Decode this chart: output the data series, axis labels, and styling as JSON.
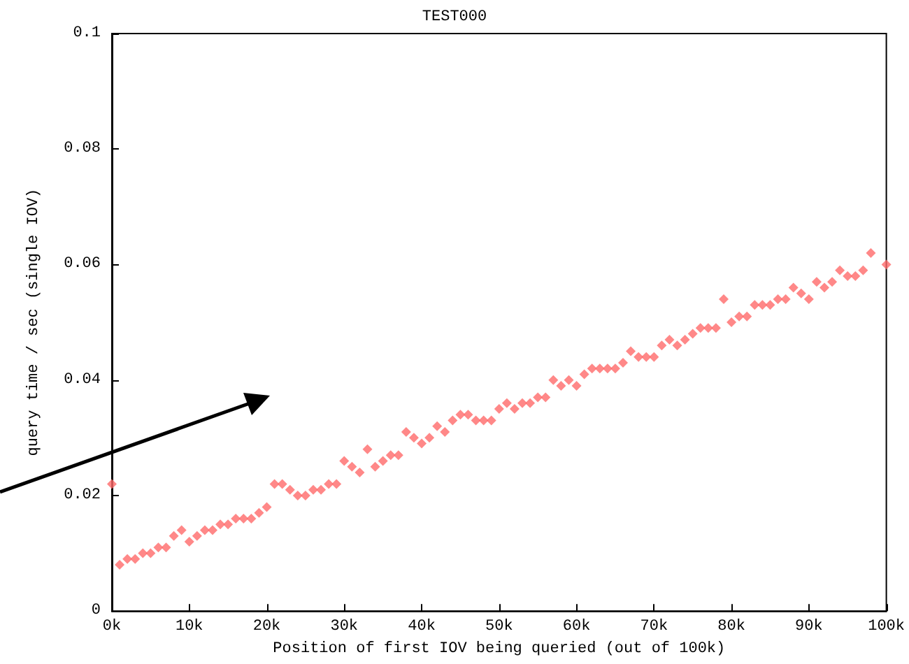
{
  "chart_data": {
    "type": "scatter",
    "title": "TEST000",
    "xlabel": "Position of first IOV being queried (out of 100k)",
    "ylabel": "query time / sec (single IOV)",
    "x": [
      0,
      1000,
      2000,
      3000,
      4000,
      5000,
      6000,
      7000,
      8000,
      9000,
      10000,
      11000,
      12000,
      13000,
      14000,
      15000,
      16000,
      17000,
      18000,
      19000,
      20000,
      21000,
      22000,
      23000,
      24000,
      25000,
      26000,
      27000,
      28000,
      29000,
      30000,
      31000,
      32000,
      33000,
      34000,
      35000,
      36000,
      37000,
      38000,
      39000,
      40000,
      41000,
      42000,
      43000,
      44000,
      45000,
      46000,
      47000,
      48000,
      49000,
      50000,
      51000,
      52000,
      53000,
      54000,
      55000,
      56000,
      57000,
      58000,
      59000,
      60000,
      61000,
      62000,
      63000,
      64000,
      65000,
      66000,
      67000,
      68000,
      69000,
      70000,
      71000,
      72000,
      73000,
      74000,
      75000,
      76000,
      77000,
      78000,
      79000,
      80000,
      81000,
      82000,
      83000,
      84000,
      85000,
      86000,
      87000,
      88000,
      89000,
      90000,
      91000,
      92000,
      93000,
      94000,
      95000,
      96000,
      97000,
      98000,
      100000
    ],
    "series": [
      {
        "color": "#ff6a6a",
        "values": [
          0.022,
          0.008,
          0.009,
          0.009,
          0.01,
          0.01,
          0.011,
          0.011,
          0.013,
          0.014,
          0.012,
          0.013,
          0.014,
          0.014,
          0.015,
          0.015,
          0.016,
          0.016,
          0.016,
          0.017,
          0.018,
          0.022,
          0.022,
          0.021,
          0.02,
          0.02,
          0.021,
          0.021,
          0.022,
          0.022,
          0.026,
          0.025,
          0.024,
          0.028,
          0.025,
          0.026,
          0.027,
          0.027,
          0.031,
          0.03,
          0.029,
          0.03,
          0.032,
          0.031,
          0.033,
          0.034,
          0.034,
          0.033,
          0.033,
          0.033,
          0.035,
          0.036,
          0.035,
          0.036,
          0.036,
          0.037,
          0.037,
          0.04,
          0.039,
          0.04,
          0.039,
          0.041,
          0.042,
          0.042,
          0.042,
          0.042,
          0.043,
          0.045,
          0.044,
          0.044,
          0.044,
          0.046,
          0.047,
          0.046,
          0.047,
          0.048,
          0.049,
          0.049,
          0.049,
          0.054,
          0.05,
          0.051,
          0.051,
          0.053,
          0.053,
          0.053,
          0.054,
          0.054,
          0.056,
          0.055,
          0.054,
          0.057,
          0.056,
          0.057,
          0.059,
          0.058,
          0.058,
          0.059,
          0.062,
          0.06
        ]
      }
    ],
    "xlim": [
      0,
      100000
    ],
    "xticks": [
      {
        "value": 0,
        "label": "0k"
      },
      {
        "value": 10000,
        "label": "10k"
      },
      {
        "value": 20000,
        "label": "20k"
      },
      {
        "value": 30000,
        "label": "30k"
      },
      {
        "value": 40000,
        "label": "40k"
      },
      {
        "value": 50000,
        "label": "50k"
      },
      {
        "value": 60000,
        "label": "60k"
      },
      {
        "value": 70000,
        "label": "70k"
      },
      {
        "value": 80000,
        "label": "80k"
      },
      {
        "value": 90000,
        "label": "90k"
      },
      {
        "value": 100000,
        "label": "100k"
      }
    ],
    "ylim": [
      0,
      0.1
    ],
    "yticks": [
      0,
      0.02,
      0.04,
      0.06,
      0.08,
      0.1
    ],
    "grid": false,
    "marker": "diamond"
  }
}
